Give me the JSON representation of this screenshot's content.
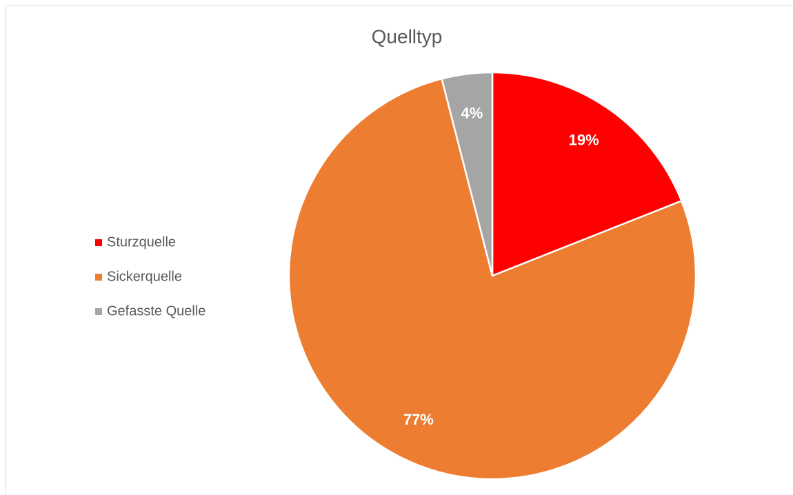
{
  "chart_data": {
    "type": "pie",
    "title": "Quelltyp",
    "categories": [
      "Sturzquelle",
      "Sickerquelle",
      "Gefasste Quelle"
    ],
    "values": [
      19,
      77,
      4
    ],
    "value_labels": [
      "19%",
      "77%",
      "4%"
    ],
    "colors": [
      "#ff0000",
      "#ed7d31",
      "#a5a5a5"
    ],
    "legend": "left"
  }
}
